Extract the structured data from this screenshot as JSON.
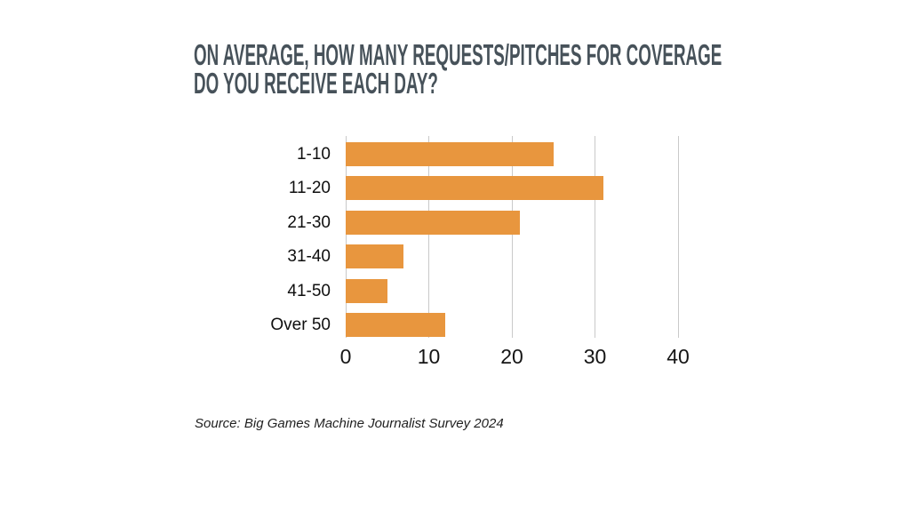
{
  "title": {
    "line1": "ON AVERAGE, HOW MANY REQUESTS/PITCHES FOR COVERAGE",
    "line2": "DO YOU RECEIVE EACH DAY?"
  },
  "source": "Source: Big Games Machine Journalist Survey 2024",
  "colors": {
    "title": "#47525A",
    "bar": "#E8963E",
    "gridline": "#C9C9C9",
    "label": "#0F0F0F"
  },
  "chart_data": {
    "type": "bar",
    "orientation": "horizontal",
    "title": "ON AVERAGE, HOW MANY REQUESTS/PITCHES FOR COVERAGE DO YOU RECEIVE EACH DAY?",
    "categories": [
      "1-10",
      "11-20",
      "21-30",
      "31-40",
      "41-50",
      "Over 50"
    ],
    "values": [
      25,
      31,
      21,
      7,
      5,
      12
    ],
    "xlabel": "",
    "ylabel": "",
    "xticks": [
      0,
      10,
      20,
      30,
      40
    ],
    "xlim": [
      0,
      45
    ],
    "grid": true,
    "legend": "none",
    "bar_color": "#E8963E"
  }
}
